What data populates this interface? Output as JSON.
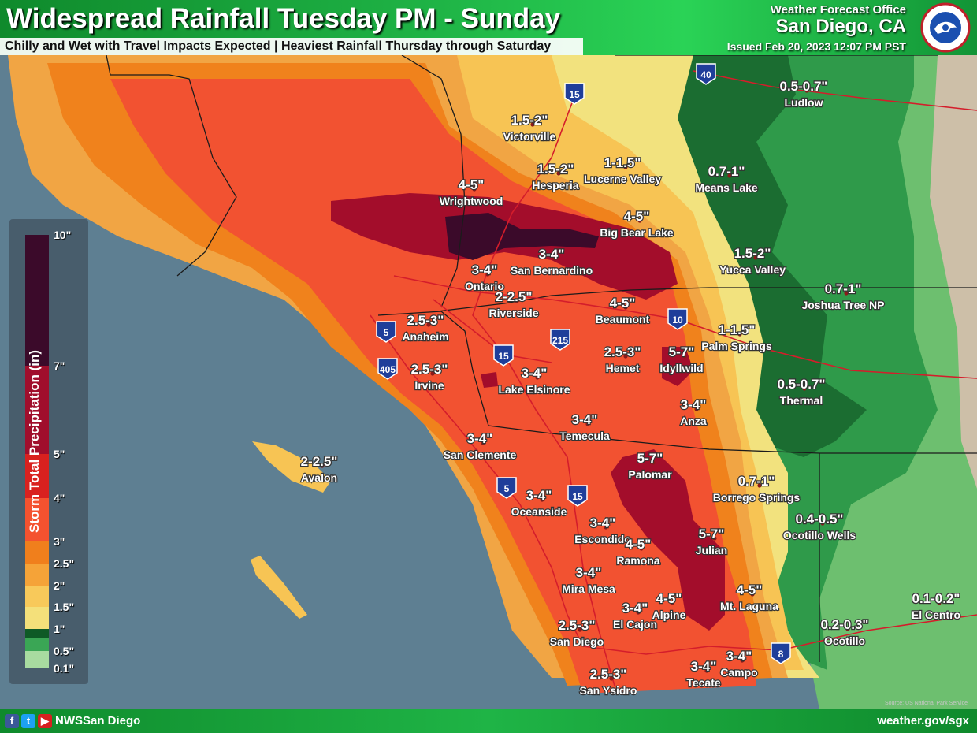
{
  "header": {
    "title": "Widespread Rainfall Tuesday PM - Sunday",
    "subtitle": "Chilly and Wet with Travel Impacts Expected | Heaviest Rainfall Thursday through Saturday",
    "office_line1": "Weather Forecast Office",
    "office_line2": "San Diego, CA",
    "issued": "Issued Feb 20, 2023 12:07 PM PST"
  },
  "legend": {
    "title": "Storm Total Precipitation (in)",
    "ticks": [
      {
        "label": "10\"",
        "value": 10
      },
      {
        "label": "7\"",
        "value": 7
      },
      {
        "label": "5\"",
        "value": 5
      },
      {
        "label": "4\"",
        "value": 4
      },
      {
        "label": "3\"",
        "value": 3
      },
      {
        "label": "2.5\"",
        "value": 2.5
      },
      {
        "label": "2\"",
        "value": 2
      },
      {
        "label": "1.5\"",
        "value": 1.5
      },
      {
        "label": "1\"",
        "value": 1
      },
      {
        "label": "0.5\"",
        "value": 0.5
      },
      {
        "label": "0.1\"",
        "value": 0.1
      }
    ],
    "colors": {
      "10": "#3b0a2a",
      "7": "#a00e2c",
      "5": "#d9211f",
      "4": "#f4522f",
      "3": "#f07f1c",
      "2.5": "#f5a338",
      "2": "#f8c95a",
      "1.5": "#f4e07a",
      "1": "#0e5a26",
      "0.5": "#3aa655",
      "0.1": "#a8dba0"
    }
  },
  "locations": [
    {
      "city": "Victorville",
      "amount": "1.5-2\""
    },
    {
      "city": "Hesperia",
      "amount": "1.5-2\""
    },
    {
      "city": "Lucerne Valley",
      "amount": "1-1.5\""
    },
    {
      "city": "Means Lake",
      "amount": "0.7-1\""
    },
    {
      "city": "Ludlow",
      "amount": "0.5-0.7\""
    },
    {
      "city": "Wrightwood",
      "amount": "4-5\""
    },
    {
      "city": "Big Bear Lake",
      "amount": "4-5\""
    },
    {
      "city": "San Bernardino",
      "amount": "3-4\""
    },
    {
      "city": "Ontario",
      "amount": "3-4\""
    },
    {
      "city": "Riverside",
      "amount": "2-2.5\""
    },
    {
      "city": "Yucca Valley",
      "amount": "1.5-2\""
    },
    {
      "city": "Joshua Tree NP",
      "amount": "0.7-1\""
    },
    {
      "city": "Beaumont",
      "amount": "4-5\""
    },
    {
      "city": "Palm Springs",
      "amount": "1-1.5\""
    },
    {
      "city": "Anaheim",
      "amount": "2.5-3\""
    },
    {
      "city": "Irvine",
      "amount": "2.5-3\""
    },
    {
      "city": "Hemet",
      "amount": "2.5-3\""
    },
    {
      "city": "Idyllwild",
      "amount": "5-7\""
    },
    {
      "city": "Lake Elsinore",
      "amount": "3-4\""
    },
    {
      "city": "Thermal",
      "amount": "0.5-0.7\""
    },
    {
      "city": "Anza",
      "amount": "3-4\""
    },
    {
      "city": "Temecula",
      "amount": "3-4\""
    },
    {
      "city": "San Clemente",
      "amount": "3-4\""
    },
    {
      "city": "Avalon",
      "amount": "2-2.5\""
    },
    {
      "city": "Palomar",
      "amount": "5-7\""
    },
    {
      "city": "Borrego Springs",
      "amount": "0.7-1\""
    },
    {
      "city": "Oceanside",
      "amount": "3-4\""
    },
    {
      "city": "Ocotillo Wells",
      "amount": "0.4-0.5\""
    },
    {
      "city": "Escondido",
      "amount": "3-4\""
    },
    {
      "city": "Ramona",
      "amount": "4-5\""
    },
    {
      "city": "Julian",
      "amount": "5-7\""
    },
    {
      "city": "Mira Mesa",
      "amount": "3-4\""
    },
    {
      "city": "Mt. Laguna",
      "amount": "4-5\""
    },
    {
      "city": "El Centro",
      "amount": "0.1-0.2\""
    },
    {
      "city": "Alpine",
      "amount": "4-5\""
    },
    {
      "city": "El Cajon",
      "amount": "3-4\""
    },
    {
      "city": "San Diego",
      "amount": "2.5-3\""
    },
    {
      "city": "Ocotillo",
      "amount": "0.2-0.3\""
    },
    {
      "city": "Campo",
      "amount": "3-4\""
    },
    {
      "city": "Tecate",
      "amount": "3-4\""
    },
    {
      "city": "San Ysidro",
      "amount": "2.5-3\""
    }
  ],
  "highways": [
    {
      "route": "40"
    },
    {
      "route": "15"
    },
    {
      "route": "10"
    },
    {
      "route": "215"
    },
    {
      "route": "15"
    },
    {
      "route": "5"
    },
    {
      "route": "405"
    },
    {
      "route": "5"
    },
    {
      "route": "15"
    },
    {
      "route": "8"
    }
  ],
  "footer": {
    "handle": "NWSSan Diego",
    "site": "weather.gov/sgx",
    "social": [
      "f",
      "t",
      "▶"
    ]
  },
  "source_note": "Source: US National Park Service"
}
